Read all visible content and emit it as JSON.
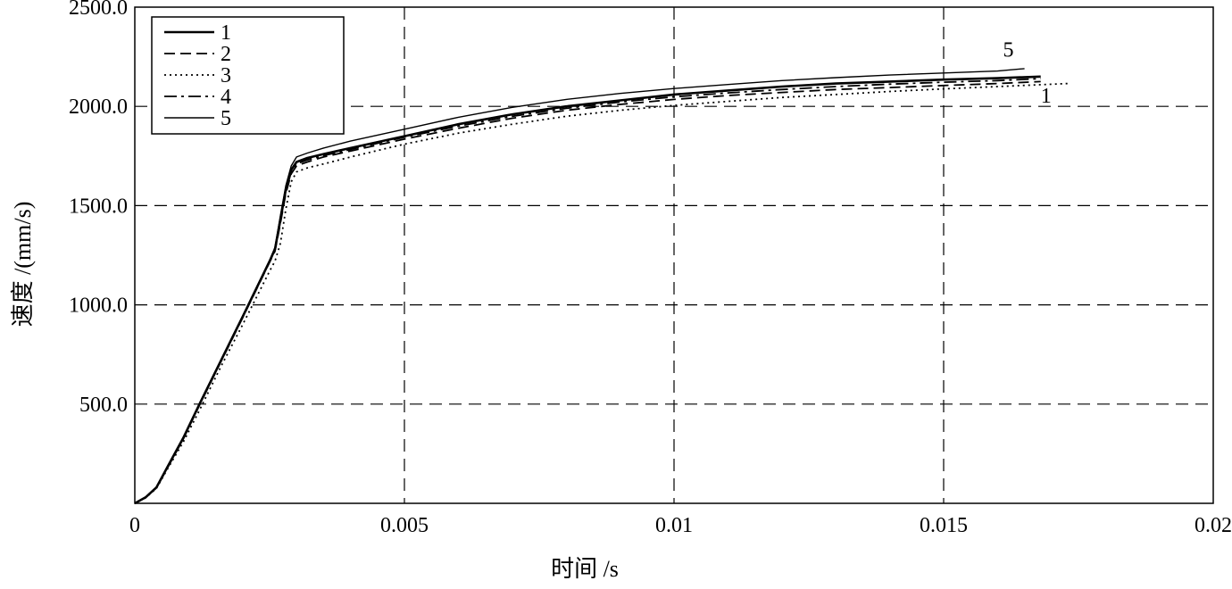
{
  "chart_data": {
    "type": "line",
    "title": "",
    "xlabel": "时间 /s",
    "ylabel": "速度 /(mm/s)",
    "xlim": [
      0,
      0.02
    ],
    "ylim": [
      0,
      2500
    ],
    "xticks": [
      0,
      0.005,
      0.01,
      0.015,
      0.02
    ],
    "xtick_labels": [
      "0",
      "0.005",
      "0.01",
      "0.015",
      "0.02"
    ],
    "yticks": [
      500,
      1000,
      1500,
      2000,
      2500
    ],
    "ytick_labels": [
      "500.0",
      "1000.0",
      "1500.0",
      "2000.0",
      "2500.0"
    ],
    "grid": true,
    "legend_position": "top-left",
    "series": [
      {
        "name": "1",
        "style": "solid-thick",
        "x": [
          0,
          0.0002,
          0.0004,
          0.0006,
          0.0009,
          0.0012,
          0.0016,
          0.002,
          0.0025,
          0.0026,
          0.0027,
          0.0028,
          0.0029,
          0.003,
          0.0032,
          0.0035,
          0.004,
          0.005,
          0.006,
          0.007,
          0.008,
          0.009,
          0.01,
          0.011,
          0.012,
          0.013,
          0.014,
          0.015,
          0.016,
          0.0168
        ],
        "y": [
          0,
          30,
          80,
          180,
          330,
          500,
          720,
          940,
          1220,
          1280,
          1430,
          1580,
          1680,
          1720,
          1740,
          1760,
          1790,
          1850,
          1910,
          1960,
          2000,
          2030,
          2060,
          2080,
          2100,
          2115,
          2125,
          2135,
          2142,
          2150
        ]
      },
      {
        "name": "2",
        "style": "dashed",
        "x": [
          0,
          0.0002,
          0.0004,
          0.0006,
          0.0009,
          0.0012,
          0.0016,
          0.002,
          0.0025,
          0.0026,
          0.0027,
          0.0028,
          0.0029,
          0.003,
          0.0032,
          0.0035,
          0.004,
          0.005,
          0.006,
          0.007,
          0.008,
          0.009,
          0.01,
          0.011,
          0.012,
          0.013,
          0.014,
          0.015,
          0.016,
          0.0168
        ],
        "y": [
          0,
          30,
          78,
          175,
          325,
          495,
          715,
          935,
          1215,
          1270,
          1410,
          1560,
          1660,
          1700,
          1720,
          1745,
          1775,
          1835,
          1890,
          1940,
          1980,
          2010,
          2035,
          2055,
          2070,
          2085,
          2095,
          2105,
          2115,
          2125
        ]
      },
      {
        "name": "3",
        "style": "dotted",
        "x": [
          0,
          0.0002,
          0.0004,
          0.0006,
          0.0009,
          0.0012,
          0.0016,
          0.002,
          0.0025,
          0.0026,
          0.0027,
          0.0028,
          0.0029,
          0.003,
          0.0032,
          0.0035,
          0.004,
          0.005,
          0.006,
          0.007,
          0.008,
          0.009,
          0.01,
          0.011,
          0.012,
          0.013,
          0.014,
          0.015,
          0.016,
          0.0173
        ],
        "y": [
          0,
          28,
          75,
          170,
          310,
          470,
          690,
          900,
          1170,
          1220,
          1310,
          1480,
          1620,
          1670,
          1690,
          1710,
          1745,
          1810,
          1865,
          1910,
          1950,
          1980,
          2005,
          2025,
          2045,
          2060,
          2075,
          2088,
          2100,
          2115
        ]
      },
      {
        "name": "4",
        "style": "dash-dot",
        "x": [
          0,
          0.0002,
          0.0004,
          0.0006,
          0.0009,
          0.0012,
          0.0016,
          0.002,
          0.0025,
          0.0026,
          0.0027,
          0.0028,
          0.0029,
          0.003,
          0.0032,
          0.0035,
          0.004,
          0.005,
          0.006,
          0.007,
          0.008,
          0.009,
          0.01,
          0.011,
          0.012,
          0.013,
          0.014,
          0.015,
          0.016,
          0.0168
        ],
        "y": [
          0,
          30,
          79,
          178,
          328,
          498,
          718,
          938,
          1218,
          1275,
          1420,
          1570,
          1670,
          1710,
          1730,
          1752,
          1783,
          1845,
          1900,
          1950,
          1990,
          2022,
          2048,
          2068,
          2085,
          2100,
          2112,
          2122,
          2130,
          2140
        ]
      },
      {
        "name": "5",
        "style": "solid-thin",
        "x": [
          0,
          0.0002,
          0.0004,
          0.0006,
          0.0009,
          0.0012,
          0.0016,
          0.002,
          0.0025,
          0.0026,
          0.0027,
          0.0028,
          0.0029,
          0.003,
          0.0032,
          0.0035,
          0.004,
          0.005,
          0.006,
          0.007,
          0.008,
          0.009,
          0.01,
          0.011,
          0.012,
          0.013,
          0.014,
          0.015,
          0.016,
          0.0165
        ],
        "y": [
          0,
          32,
          82,
          185,
          335,
          505,
          725,
          945,
          1225,
          1290,
          1450,
          1600,
          1700,
          1745,
          1765,
          1790,
          1825,
          1885,
          1945,
          1995,
          2035,
          2065,
          2090,
          2110,
          2130,
          2145,
          2158,
          2168,
          2178,
          2190
        ]
      }
    ],
    "annotations": [
      {
        "text": "5",
        "x": 0.0161,
        "y": 2250
      },
      {
        "text": "1",
        "x": 0.0168,
        "y": 2020
      }
    ]
  }
}
